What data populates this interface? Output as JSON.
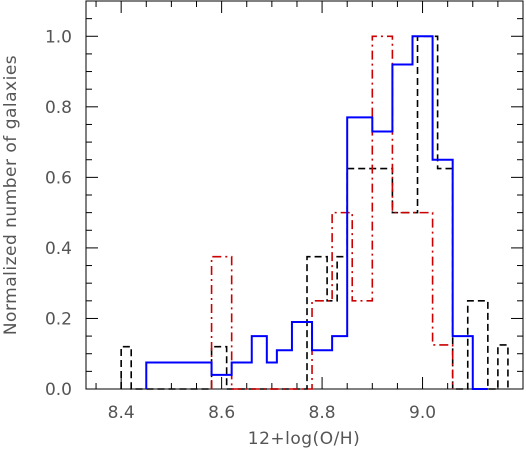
{
  "chart_data": {
    "type": "histogram-step",
    "title": "",
    "xlabel": "12+log(O/H)",
    "ylabel": "Normalized number of galaxies",
    "xlim": [
      8.33,
      9.2
    ],
    "ylim": [
      0.0,
      1.1
    ],
    "xticks": [
      8.4,
      8.6,
      8.8,
      9.0
    ],
    "xtick_labels": [
      "8.4",
      "8.6",
      "8.8",
      "9.0"
    ],
    "yticks": [
      0.0,
      0.2,
      0.4,
      0.6,
      0.8,
      1.0
    ],
    "ytick_labels": [
      "0.0",
      "0.2",
      "0.4",
      "0.6",
      "0.8",
      "1.0"
    ],
    "grid": false,
    "legend": null,
    "series": [
      {
        "color": "#000000",
        "linestyle": "dashed",
        "edges": [
          8.4,
          8.42,
          8.44,
          8.58,
          8.61,
          8.77,
          8.81,
          8.83,
          8.85,
          8.9,
          8.94,
          8.99,
          9.03,
          9.06,
          9.09,
          9.13,
          9.15,
          9.17
        ],
        "values": [
          0.12,
          0.0,
          0.0,
          0.12,
          0.0,
          0.375,
          0.25,
          0.375,
          0.625,
          0.625,
          0.5,
          1.0,
          0.625,
          0.0,
          0.25,
          0.0,
          0.125
        ]
      },
      {
        "color": "#cc0000",
        "linestyle": "dashdot",
        "edges": [
          8.58,
          8.62,
          8.78,
          8.82,
          8.86,
          8.9,
          8.94,
          9.02,
          9.06
        ],
        "values": [
          0.375,
          0.0,
          0.25,
          0.5,
          0.25,
          1.0,
          0.5,
          0.125
        ]
      },
      {
        "color": "#0000ff",
        "linestyle": "solid",
        "edges": [
          8.45,
          8.58,
          8.62,
          8.66,
          8.69,
          8.71,
          8.74,
          8.78,
          8.82,
          8.85,
          8.9,
          8.94,
          8.98,
          9.02,
          9.06,
          9.1,
          9.13
        ],
        "values": [
          0.075,
          0.04,
          0.075,
          0.15,
          0.075,
          0.11,
          0.19,
          0.11,
          0.15,
          0.77,
          0.73,
          0.92,
          1.0,
          0.65,
          0.15,
          0.0
        ]
      }
    ]
  }
}
